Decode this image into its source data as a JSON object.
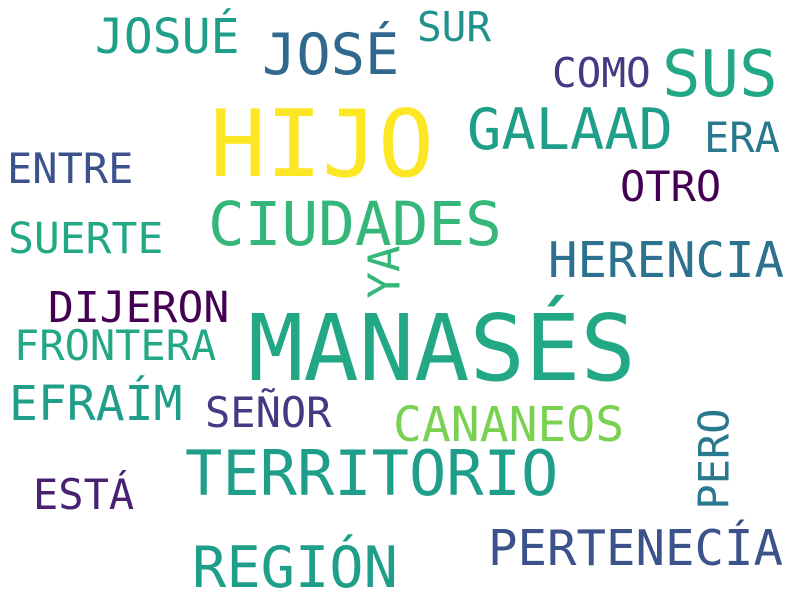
{
  "words": [
    {
      "text": "HIJO",
      "color": "#fde725"
    },
    {
      "text": "MANASÉS",
      "color": "#22a884"
    },
    {
      "text": "CIUDADES",
      "color": "#35b779"
    },
    {
      "text": "TERRITORIO",
      "color": "#1f9e89"
    },
    {
      "text": "SUS",
      "color": "#22a884"
    },
    {
      "text": "JOSÉ",
      "color": "#31688e"
    },
    {
      "text": "GALAAD",
      "color": "#1f9e89"
    },
    {
      "text": "REGIÓN",
      "color": "#1f9e89"
    },
    {
      "text": "HERENCIA",
      "color": "#2c728e"
    },
    {
      "text": "PERTENECÍA",
      "color": "#3b528b"
    },
    {
      "text": "CANANEOS",
      "color": "#7ad151"
    },
    {
      "text": "JOSUÉ",
      "color": "#1f9e89"
    },
    {
      "text": "EFRAÍM",
      "color": "#1f9e89"
    },
    {
      "text": "DIJERON",
      "color": "#440154"
    },
    {
      "text": "FRONTERA",
      "color": "#22a884"
    },
    {
      "text": "SUERTE",
      "color": "#22a884"
    },
    {
      "text": "ENTRE",
      "color": "#3b528b"
    },
    {
      "text": "COMO",
      "color": "#443983"
    },
    {
      "text": "OTRO",
      "color": "#440154"
    },
    {
      "text": "ERA",
      "color": "#2a788e"
    },
    {
      "text": "SUR",
      "color": "#21918c"
    },
    {
      "text": "SEÑOR",
      "color": "#443983"
    },
    {
      "text": "ESTÁ",
      "color": "#482173"
    },
    {
      "text": "YA",
      "color": "#35b779"
    },
    {
      "text": "PERO",
      "color": "#2a788e"
    }
  ]
}
